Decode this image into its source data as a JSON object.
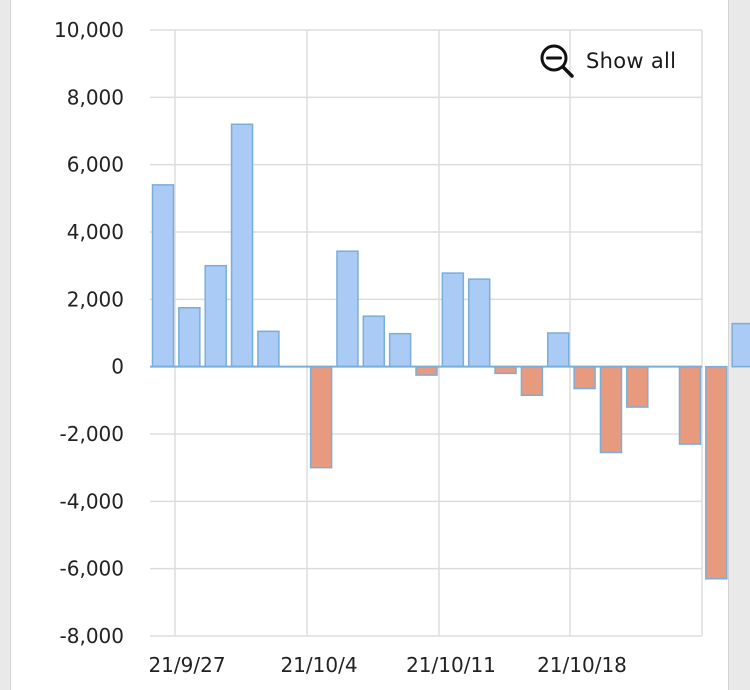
{
  "show_all": {
    "label": "Show all",
    "icon": "zoom-out-icon"
  },
  "colors": {
    "positive": "#a9cbf5",
    "negative": "#e89a7e",
    "bar_stroke": "#7aaed9",
    "grid": "#dddddd",
    "zero_line": "#7aaed9"
  },
  "chart_data": {
    "type": "bar",
    "title": "",
    "xlabel": "",
    "ylabel": "",
    "ylim": [
      -8000,
      10000
    ],
    "y_ticks": [
      10000,
      8000,
      6000,
      4000,
      2000,
      0,
      -2000,
      -4000,
      -6000,
      -8000
    ],
    "y_tick_labels": [
      "10,000",
      "8,000",
      "6,000",
      "4,000",
      "2,000",
      "0",
      "-2,000",
      "-4,000",
      "-6,000",
      "-8,000"
    ],
    "x_tick_labels": [
      "21/9/27",
      "21/10/4",
      "21/10/11",
      "21/10/18"
    ],
    "categories": [
      "21/9/27",
      "21/9/28",
      "21/9/29",
      "21/9/30",
      "21/10/1",
      "21/10/3",
      "21/10/4",
      "21/10/5",
      "21/10/6",
      "21/10/7",
      "21/10/8",
      "21/10/9",
      "21/10/10",
      "21/10/11",
      "21/10/12",
      "21/10/13",
      "21/10/14",
      "21/10/15",
      "21/10/17",
      "21/10/18",
      "21/10/19"
    ],
    "values": [
      5400,
      1750,
      3000,
      7200,
      1050,
      -3000,
      3430,
      1500,
      980,
      -250,
      2780,
      2600,
      -200,
      -850,
      1000,
      -650,
      -2550,
      -1200,
      -2300,
      -6300,
      1280
    ],
    "grid": true
  }
}
